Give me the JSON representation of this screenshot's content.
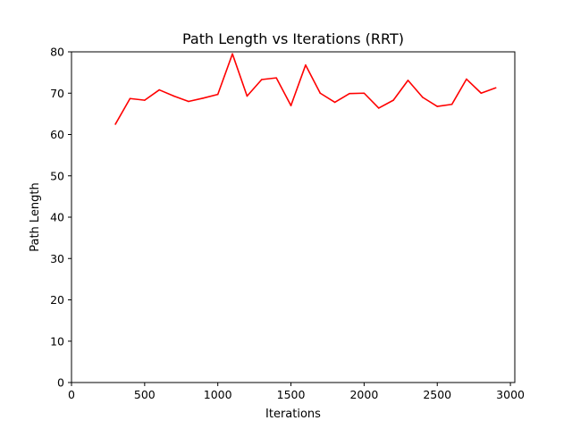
{
  "chart_data": {
    "type": "line",
    "title": "Path Length vs Iterations (RRT)",
    "xlabel": "Iterations",
    "ylabel": "Path Length",
    "xlim": [
      0,
      3030
    ],
    "ylim": [
      0,
      80
    ],
    "xticks": [
      0,
      500,
      1000,
      1500,
      2000,
      2500,
      3000
    ],
    "yticks": [
      0,
      10,
      20,
      30,
      40,
      50,
      60,
      70,
      80
    ],
    "grid": false,
    "legend": "none",
    "series": [
      {
        "color": "#ff0000",
        "x": [
          300,
          400,
          500,
          600,
          700,
          800,
          900,
          1000,
          1100,
          1200,
          1300,
          1400,
          1500,
          1600,
          1700,
          1800,
          1900,
          2000,
          2100,
          2200,
          2300,
          2400,
          2500,
          2600,
          2700,
          2800,
          2900
        ],
        "y": [
          62.5,
          68.7,
          68.3,
          70.8,
          69.3,
          68.0,
          68.8,
          69.7,
          79.5,
          69.3,
          73.3,
          73.7,
          67.0,
          76.8,
          70.0,
          67.8,
          69.9,
          70.0,
          66.4,
          68.3,
          73.1,
          69.0,
          66.8,
          67.3,
          73.4,
          70.0,
          71.3
        ]
      }
    ]
  }
}
